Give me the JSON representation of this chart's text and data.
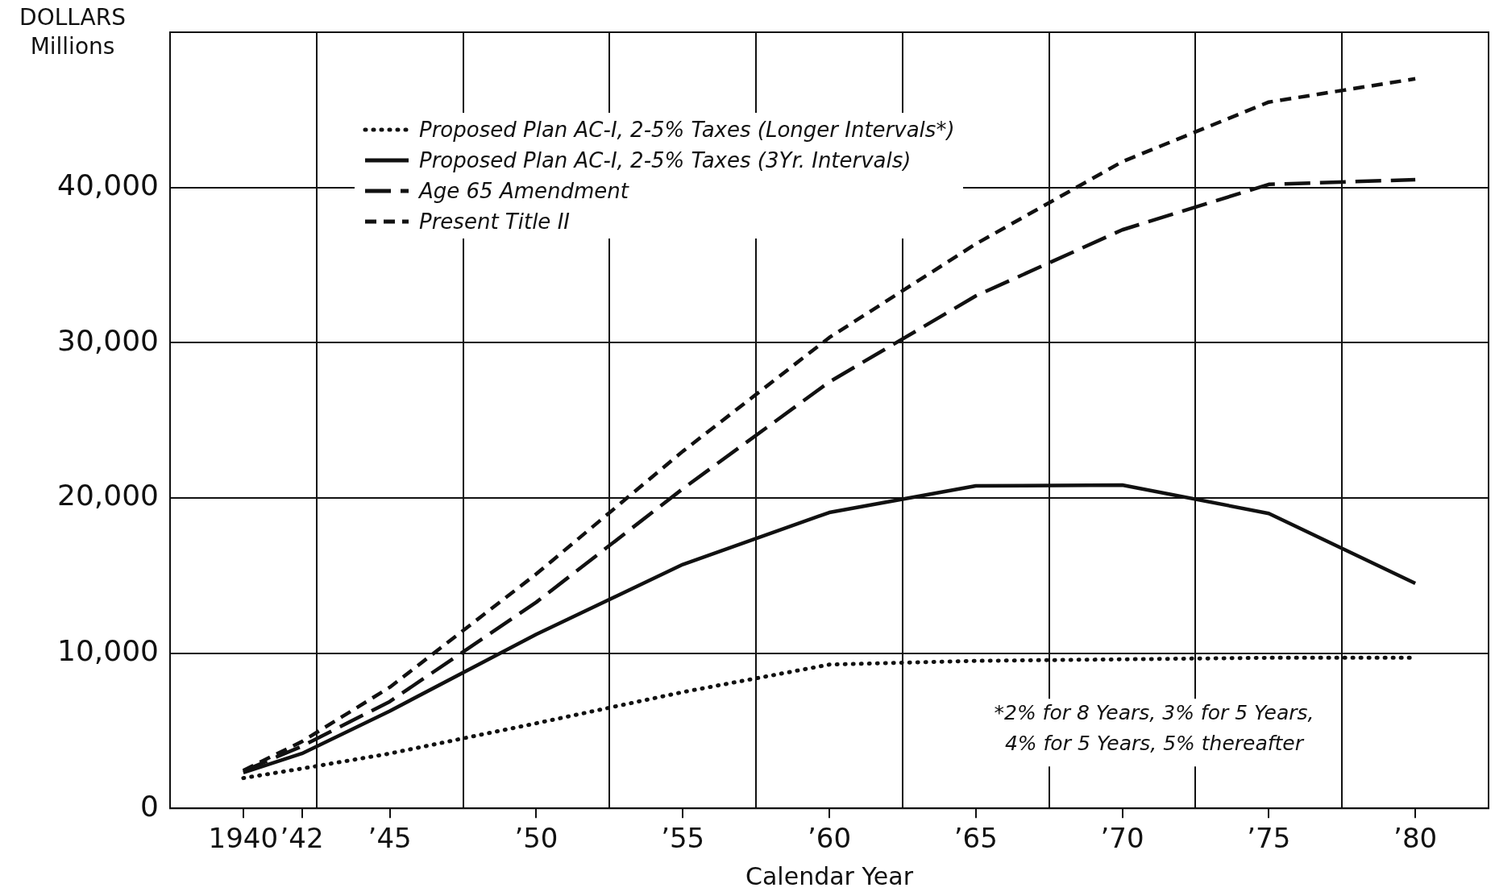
{
  "chart_data": {
    "type": "line",
    "xlabel": "Calendar Year",
    "ylabel": "DOLLARS Millions",
    "x": [
      1940,
      1942,
      1945,
      1950,
      1955,
      1960,
      1965,
      1970,
      1975,
      1980
    ],
    "series": [
      {
        "name": "Proposed Plan AC-I, 2-5% Taxes (Longer Intervals*)",
        "color": "#111111",
        "line_style": "dotted",
        "values": [
          1950,
          2560,
          3530,
          5480,
          7490,
          9260,
          9500,
          9600,
          9700,
          9700
        ]
      },
      {
        "name": "Proposed Plan AC-I, 2-5% Taxes (3Yr. Intervals)",
        "color": "#111111",
        "line_style": "solid",
        "values": [
          2300,
          3530,
          6270,
          11210,
          15710,
          19060,
          20770,
          20830,
          19000,
          14490
        ]
      },
      {
        "name": "Age 65 Amendment",
        "color": "#111111",
        "line_style": "dashed",
        "values": [
          2400,
          4000,
          6880,
          13280,
          20590,
          27470,
          33010,
          37270,
          40200,
          40500
        ]
      },
      {
        "name": "Present Title II",
        "color": "#111111",
        "line_style": "dashed",
        "values": [
          2440,
          4300,
          7800,
          15100,
          23000,
          30330,
          36360,
          41660,
          45500,
          47000
        ]
      }
    ],
    "xlim": [
      1937.5,
      1982.5
    ],
    "xticks": [
      {
        "value": 1940,
        "label": "1940"
      },
      {
        "value": 1942,
        "label": "’42"
      },
      {
        "value": 1942.5,
        "label": null
      },
      {
        "value": 1945,
        "label": "’45"
      },
      {
        "value": 1947.5,
        "label": null
      },
      {
        "value": 1950,
        "label": "’50"
      },
      {
        "value": 1952.5,
        "label": null
      },
      {
        "value": 1955,
        "label": "’55"
      },
      {
        "value": 1957.5,
        "label": null
      },
      {
        "value": 1960,
        "label": "’60"
      },
      {
        "value": 1962.5,
        "label": null
      },
      {
        "value": 1965,
        "label": "’65"
      },
      {
        "value": 1967.5,
        "label": null
      },
      {
        "value": 1970,
        "label": "’70"
      },
      {
        "value": 1972.5,
        "label": null
      },
      {
        "value": 1975,
        "label": "’75"
      },
      {
        "value": 1977.5,
        "label": null
      },
      {
        "value": 1980,
        "label": "’80"
      }
    ],
    "ylim": [
      0,
      50000
    ],
    "yticks": [
      0,
      {
        "value": 10000,
        "label": "10,000"
      },
      {
        "value": 20000,
        "label": "20,000"
      },
      {
        "value": 30000,
        "label": "30,000"
      },
      {
        "value": 40000,
        "label": "40,000"
      },
      {
        "value": 50000,
        "label": null
      }
    ],
    "grid": true,
    "legend": "top left",
    "marker": "none",
    "annotations": [
      "*2% for 8 Years, 3% for 5 Years, 4% for 5 Years, 5% thereafter"
    ]
  }
}
